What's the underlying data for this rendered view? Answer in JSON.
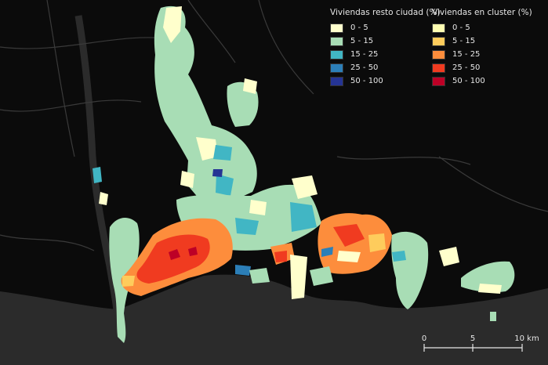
{
  "legend_resto": {
    "title": "Viviendas resto ciudad (%)",
    "items": [
      {
        "label": "0 - 5",
        "color": "#ffffcc"
      },
      {
        "label": "5 - 15",
        "color": "#a8ddb5"
      },
      {
        "label": "15 - 25",
        "color": "#41b6c4"
      },
      {
        "label": "25 - 50",
        "color": "#2c7fb8"
      },
      {
        "label": "50 - 100",
        "color": "#253494"
      }
    ]
  },
  "legend_cluster": {
    "title": "Viviendas en cluster (%)",
    "items": [
      {
        "label": "0 - 5",
        "color": "#ffffb2"
      },
      {
        "label": "5 - 15",
        "color": "#fecc5c"
      },
      {
        "label": "15 - 25",
        "color": "#fd8d3c"
      },
      {
        "label": "25 - 50",
        "color": "#f03b20"
      },
      {
        "label": "50 - 100",
        "color": "#bd0026"
      }
    ]
  },
  "scale_bar": {
    "labels": [
      "0",
      "5",
      "10 km"
    ]
  },
  "colors": {
    "background": "#0b0b0b",
    "sea": "#2b2b2b",
    "land_dark": "#151515",
    "roads": "#3a3a3a"
  }
}
